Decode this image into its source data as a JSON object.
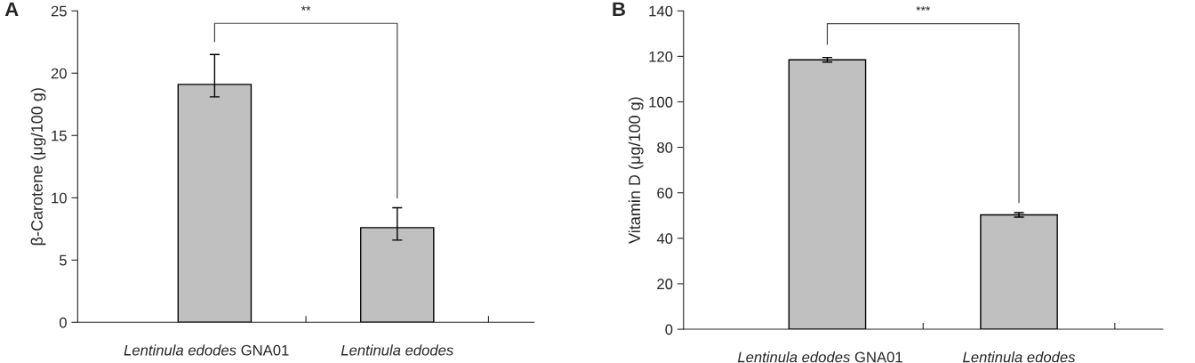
{
  "chart_data": [
    {
      "type": "bar",
      "title": "A",
      "ylabel": "β-Carotene (μg/100 g)",
      "categories": [
        "Lentinula edodes GNA01",
        "Lentinula edodes"
      ],
      "values": [
        19.1,
        7.6
      ],
      "errors": [
        [
          18.1,
          21.5
        ],
        [
          6.6,
          9.2
        ]
      ],
      "color": "#c0c0c0",
      "ylim": [
        0,
        25
      ],
      "yticks": [
        0,
        5,
        10,
        15,
        20,
        25
      ],
      "grid": false,
      "legend": false,
      "annotations": [
        "**"
      ]
    },
    {
      "type": "bar",
      "title": "B",
      "ylabel": "Vitamin D (μg/100 g)",
      "categories": [
        "Lentinula edodes GNA01",
        "Lentinula edodes"
      ],
      "values": [
        118.5,
        50.3
      ],
      "errors": [
        1,
        1
      ],
      "color": "#c0c0c0",
      "ylim": [
        0,
        140
      ],
      "yticks": [
        0,
        20,
        40,
        60,
        80,
        100,
        120,
        140
      ],
      "grid": false,
      "legend": false,
      "annotations": [
        "***"
      ]
    }
  ]
}
